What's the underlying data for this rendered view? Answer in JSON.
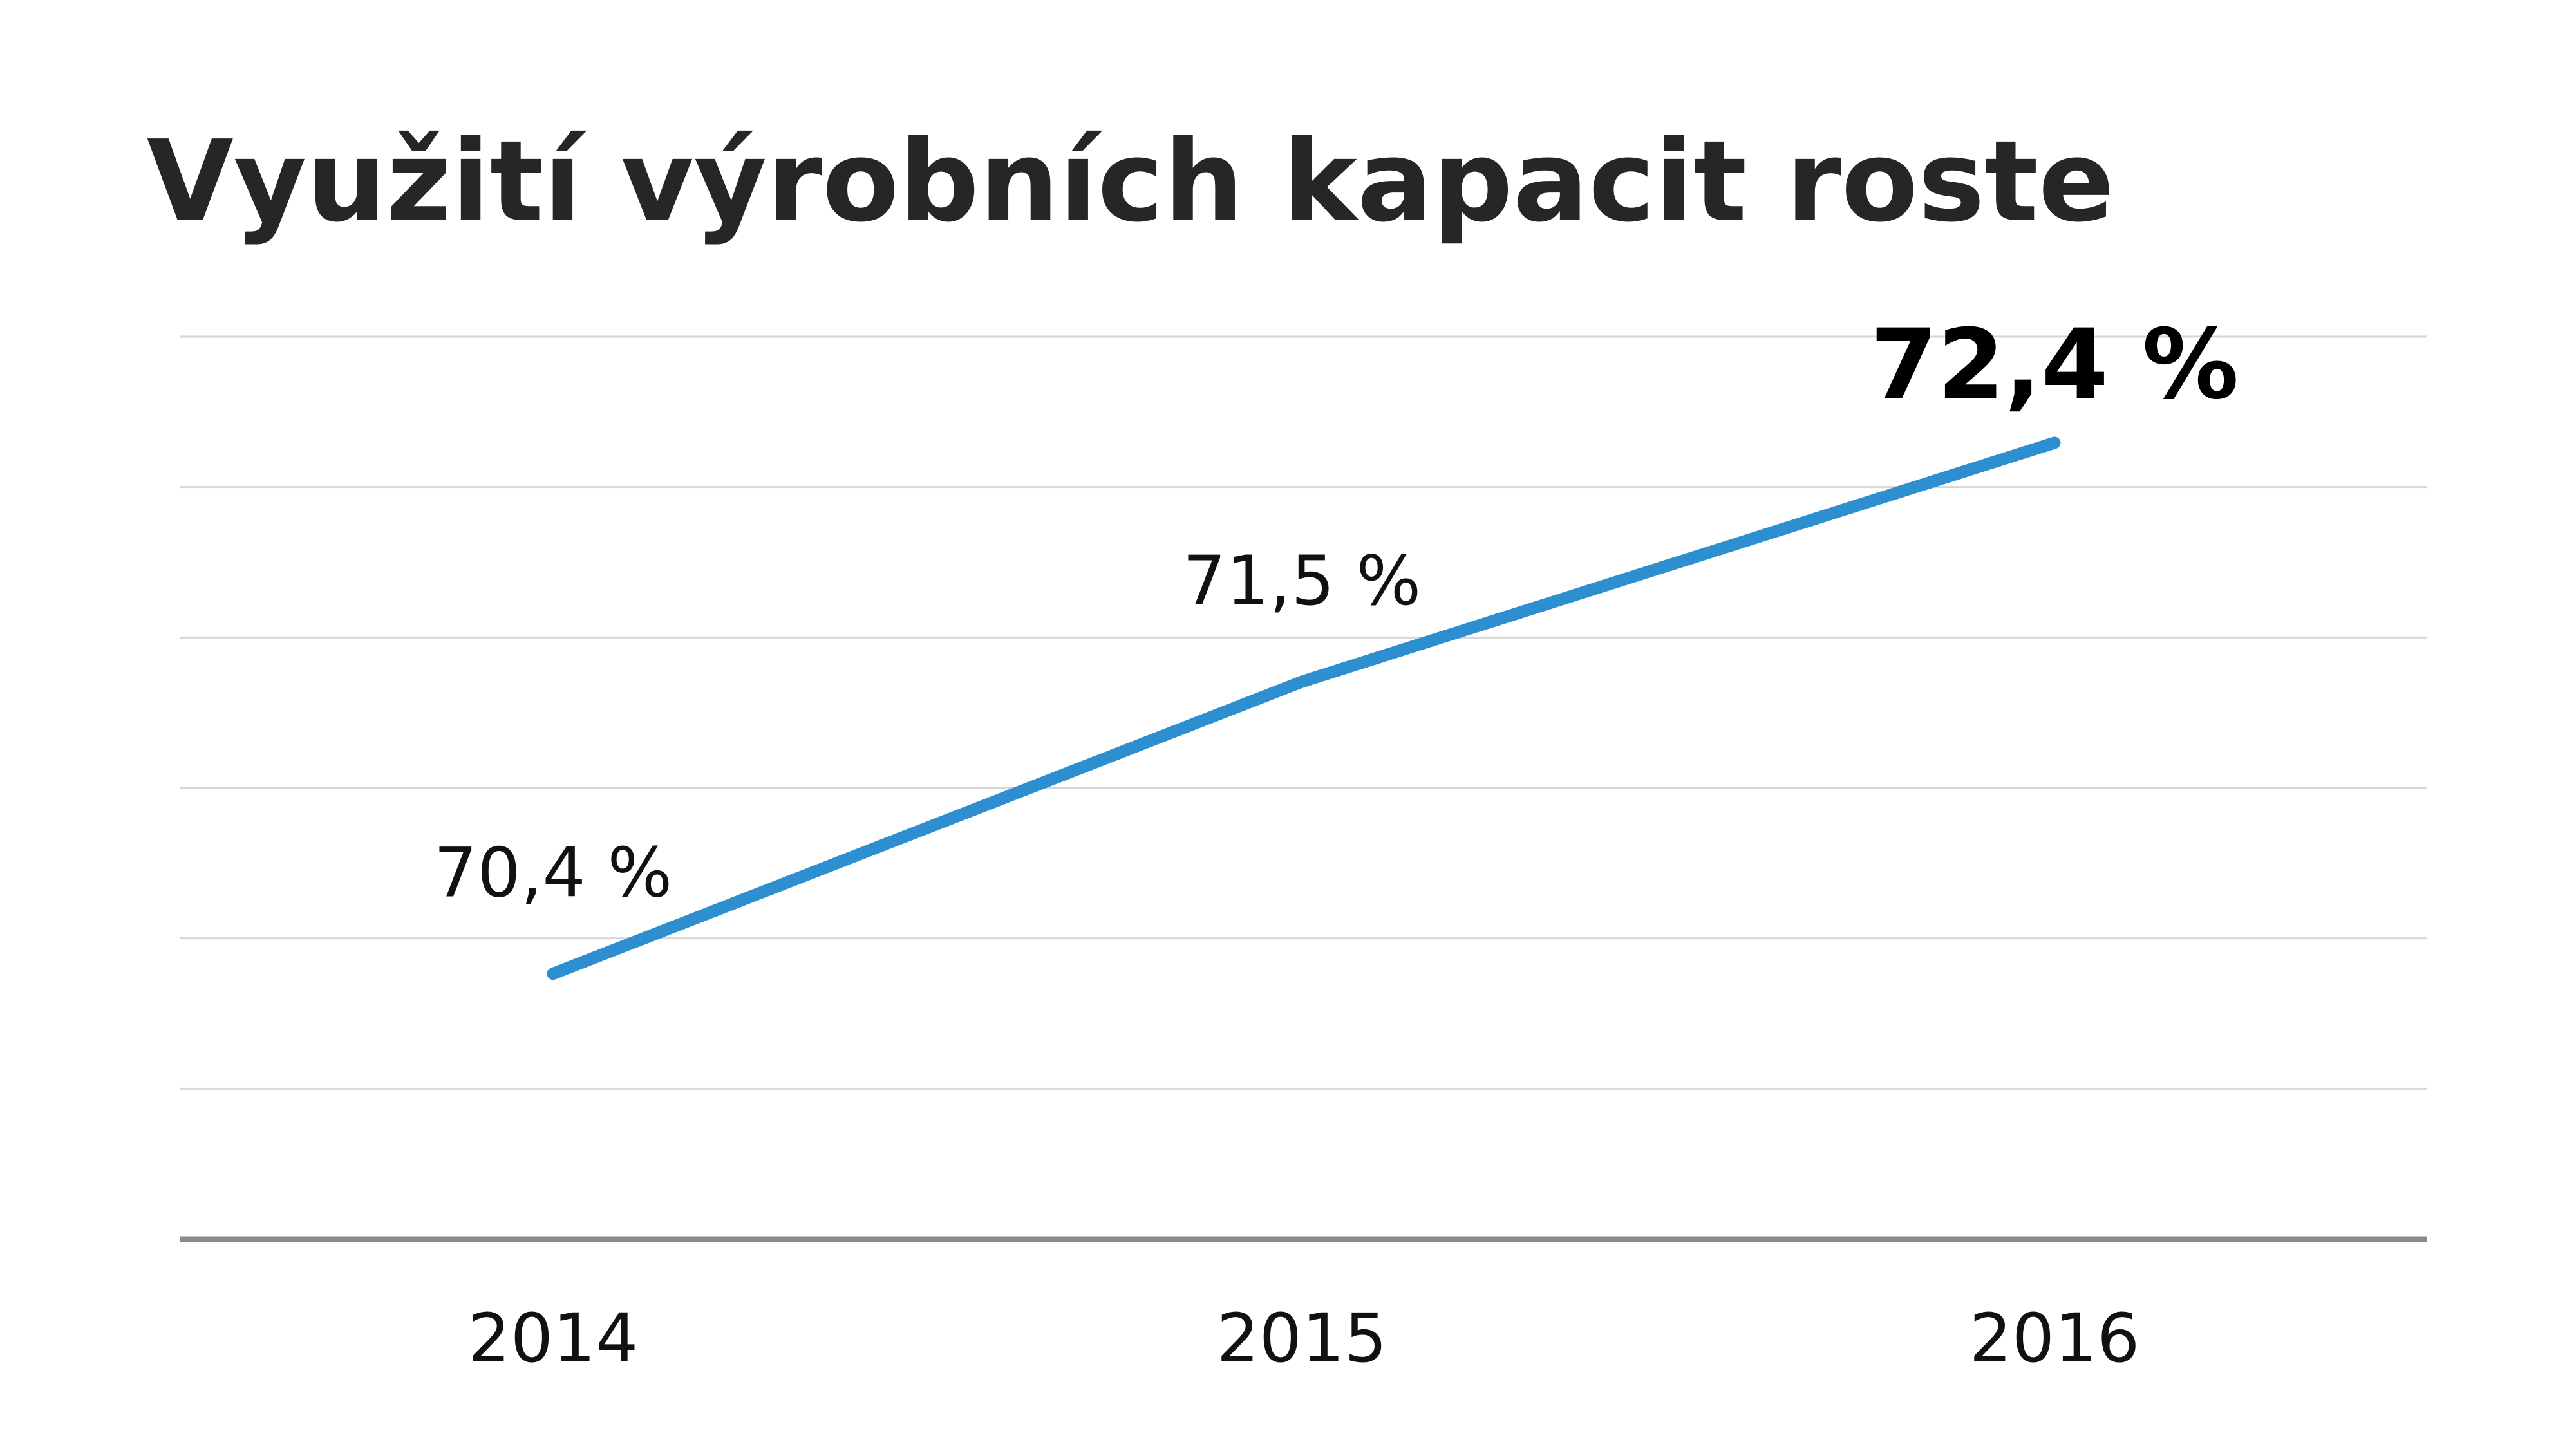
{
  "chart_data": {
    "type": "line",
    "title": "Využití výrobních kapacit roste",
    "categories": [
      "2014",
      "2015",
      "2016"
    ],
    "series": [
      {
        "values": [
          70.4,
          71.5,
          72.4
        ],
        "labels": [
          "70,4 %",
          "71,5 %",
          "72,4 %"
        ],
        "color": "#2E8FD0"
      }
    ],
    "ylim": [
      69.4,
      72.8
    ],
    "grid": true,
    "legend": "none",
    "highlight_index": 2,
    "colors": {
      "line": "#2E8FD0",
      "grid": "#D6D6D6",
      "baseline": "#8A8A8A",
      "title": "#262626"
    }
  }
}
